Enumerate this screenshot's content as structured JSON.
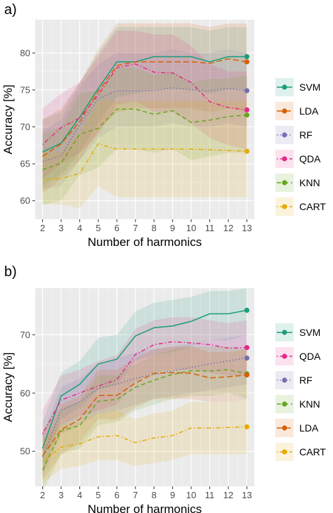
{
  "figure": {
    "panels": [
      {
        "id": "a",
        "label": "a)",
        "xlabel": "Number of harmonics",
        "ylabel": "Accuracy [%]"
      },
      {
        "id": "b",
        "label": "b)",
        "xlabel": "Number of harmonics",
        "ylabel": "Accuracy [%]"
      }
    ]
  },
  "chart_data": [
    {
      "type": "line",
      "panel": "a)",
      "title": "",
      "xlabel": "Number of harmonics",
      "ylabel": "Accuracy [%]",
      "x": [
        2,
        3,
        4,
        5,
        6,
        7,
        8,
        9,
        10,
        11,
        12,
        13
      ],
      "xticks": [
        2,
        3,
        4,
        5,
        6,
        7,
        8,
        9,
        10,
        11,
        12,
        13
      ],
      "xlim": [
        1.6,
        13.4
      ],
      "ylim": [
        57.5,
        84.5
      ],
      "yticks": [
        60,
        65,
        70,
        75,
        80
      ],
      "grid": true,
      "background": "#ebebeb",
      "legend_position": "right",
      "series": [
        {
          "name": "SVM",
          "color": "#1b9e77",
          "dash": "solid",
          "values": [
            66.6,
            67.8,
            71.3,
            75.2,
            78.8,
            78.8,
            79.5,
            79.5,
            79.5,
            78.8,
            79.5,
            79.5
          ],
          "lower": [
            62.0,
            63.5,
            66.5,
            70.5,
            74.0,
            74.5,
            75.0,
            75.0,
            75.0,
            74.5,
            75.0,
            75.0
          ],
          "upper": [
            71.0,
            72.0,
            76.0,
            80.0,
            83.5,
            83.5,
            83.5,
            83.5,
            83.5,
            83.0,
            83.5,
            83.5
          ]
        },
        {
          "name": "LDA",
          "color": "#d95f02",
          "dash": "longdash",
          "values": [
            66.0,
            67.7,
            70.7,
            74.8,
            78.3,
            78.8,
            78.8,
            78.8,
            78.8,
            78.6,
            79.2,
            78.8
          ],
          "lower": [
            61.0,
            63.0,
            65.5,
            69.5,
            72.0,
            72.5,
            72.5,
            72.5,
            72.5,
            72.0,
            72.5,
            72.0
          ],
          "upper": [
            71.0,
            72.5,
            76.0,
            80.5,
            84.0,
            84.0,
            84.0,
            84.0,
            84.0,
            83.5,
            84.0,
            84.0
          ]
        },
        {
          "name": "RF",
          "color": "#7570b3",
          "dash": "dotted",
          "values": [
            65.3,
            66.1,
            70.3,
            73.8,
            74.9,
            74.9,
            74.9,
            75.3,
            75.0,
            74.9,
            75.2,
            74.9
          ],
          "lower": [
            61.5,
            62.0,
            65.5,
            68.5,
            70.0,
            70.0,
            70.0,
            70.5,
            70.0,
            70.0,
            70.5,
            70.0
          ],
          "upper": [
            69.5,
            71.0,
            75.5,
            78.5,
            80.0,
            80.0,
            80.0,
            80.5,
            80.0,
            80.0,
            80.5,
            80.0
          ]
        },
        {
          "name": "QDA",
          "color": "#e7298a",
          "dash": "dotdash",
          "values": [
            67.6,
            69.9,
            71.2,
            74.3,
            78.0,
            78.5,
            77.4,
            77.3,
            76.0,
            73.4,
            72.6,
            72.3
          ],
          "lower": [
            63.0,
            65.0,
            66.5,
            69.0,
            73.0,
            73.5,
            72.0,
            72.0,
            70.5,
            68.5,
            67.5,
            67.0
          ],
          "upper": [
            72.5,
            74.5,
            76.0,
            79.5,
            83.0,
            83.0,
            82.5,
            82.5,
            81.0,
            78.5,
            77.5,
            77.5
          ]
        },
        {
          "name": "KNN",
          "color": "#66a61e",
          "dash": "dashed",
          "values": [
            64.2,
            65.1,
            69.0,
            69.8,
            72.4,
            72.4,
            71.7,
            72.2,
            70.6,
            70.9,
            71.4,
            71.6
          ],
          "lower": [
            59.5,
            60.0,
            63.5,
            64.5,
            67.0,
            67.0,
            66.5,
            67.0,
            65.5,
            66.0,
            66.5,
            66.5
          ],
          "upper": [
            69.0,
            70.0,
            74.5,
            75.0,
            78.0,
            78.0,
            77.0,
            77.5,
            76.0,
            76.5,
            76.5,
            77.0
          ]
        },
        {
          "name": "CART",
          "color": "#e6ab02",
          "dash": "dotdash",
          "values": [
            62.9,
            63.0,
            63.7,
            67.7,
            67.0,
            67.0,
            67.0,
            67.0,
            67.0,
            66.9,
            66.8,
            66.7
          ],
          "lower": [
            59.5,
            59.5,
            59.0,
            62.0,
            60.5,
            60.5,
            60.5,
            60.5,
            60.5,
            60.5,
            60.5,
            60.5
          ],
          "upper": [
            66.5,
            66.5,
            69.0,
            73.5,
            73.5,
            73.5,
            73.5,
            73.5,
            73.5,
            73.5,
            73.5,
            73.5
          ]
        }
      ]
    },
    {
      "type": "line",
      "panel": "b)",
      "title": "",
      "xlabel": "Number of harmonics",
      "ylabel": "Accuracy [%]",
      "x": [
        2,
        3,
        4,
        5,
        6,
        7,
        8,
        9,
        10,
        11,
        12,
        13
      ],
      "xticks": [
        2,
        3,
        4,
        5,
        6,
        7,
        8,
        9,
        10,
        11,
        12,
        13
      ],
      "xlim": [
        1.6,
        13.4
      ],
      "ylim": [
        44,
        78
      ],
      "yticks": [
        50,
        60,
        70
      ],
      "grid": true,
      "background": "#ebebeb",
      "legend_position": "right",
      "series": [
        {
          "name": "SVM",
          "color": "#1b9e77",
          "dash": "solid",
          "values": [
            50.5,
            59.5,
            61.5,
            65.0,
            65.8,
            69.8,
            71.2,
            71.5,
            72.3,
            73.6,
            73.6,
            74.2
          ],
          "lower": [
            46.0,
            55.5,
            57.5,
            60.5,
            61.5,
            65.5,
            66.5,
            67.0,
            68.0,
            69.0,
            69.0,
            70.0
          ],
          "upper": [
            55.0,
            63.5,
            65.5,
            69.5,
            70.0,
            74.0,
            75.5,
            76.0,
            76.5,
            77.5,
            77.5,
            78.0
          ]
        },
        {
          "name": "QDA",
          "color": "#e7298a",
          "dash": "dotdash",
          "values": [
            53.0,
            58.8,
            60.0,
            61.2,
            62.3,
            66.6,
            68.3,
            68.8,
            68.6,
            68.3,
            67.7,
            67.8
          ],
          "lower": [
            49.0,
            54.5,
            56.0,
            57.0,
            58.0,
            62.0,
            63.5,
            64.0,
            64.0,
            63.5,
            63.0,
            63.0
          ],
          "upper": [
            57.0,
            63.0,
            64.0,
            65.5,
            66.5,
            71.0,
            72.5,
            73.0,
            73.0,
            72.5,
            72.0,
            72.5
          ]
        },
        {
          "name": "RF",
          "color": "#7570b3",
          "dash": "dotted",
          "values": [
            49.0,
            57.0,
            58.5,
            60.8,
            61.5,
            62.5,
            63.2,
            63.8,
            64.4,
            65.0,
            65.5,
            66.0
          ],
          "lower": [
            45.5,
            53.0,
            54.5,
            56.5,
            57.0,
            58.0,
            59.0,
            59.5,
            60.0,
            60.5,
            61.0,
            61.5
          ],
          "upper": [
            53.0,
            61.0,
            62.5,
            65.0,
            66.0,
            67.0,
            67.5,
            68.0,
            68.5,
            69.0,
            69.5,
            70.0
          ]
        },
        {
          "name": "KNN",
          "color": "#66a61e",
          "dash": "dashed",
          "values": [
            46.8,
            53.5,
            54.4,
            58.6,
            58.9,
            61.0,
            62.2,
            63.2,
            63.8,
            63.8,
            64.0,
            63.3
          ],
          "lower": [
            43.0,
            49.5,
            50.5,
            54.5,
            55.0,
            57.0,
            58.0,
            59.0,
            59.5,
            59.5,
            60.0,
            59.0
          ],
          "upper": [
            50.5,
            57.5,
            58.5,
            63.0,
            63.0,
            65.0,
            66.5,
            67.5,
            68.0,
            68.0,
            68.0,
            67.5
          ]
        },
        {
          "name": "LDA",
          "color": "#d95f02",
          "dash": "longdash",
          "values": [
            49.2,
            53.7,
            55.5,
            59.6,
            59.6,
            61.7,
            63.4,
            63.5,
            63.4,
            62.6,
            62.8,
            63.1
          ],
          "lower": [
            45.0,
            49.5,
            51.5,
            55.5,
            55.5,
            57.5,
            59.0,
            59.0,
            59.0,
            58.5,
            58.5,
            59.0
          ],
          "upper": [
            53.5,
            58.0,
            59.5,
            64.0,
            64.0,
            66.0,
            67.5,
            68.0,
            68.0,
            67.0,
            67.0,
            67.5
          ]
        },
        {
          "name": "CART",
          "color": "#e6ab02",
          "dash": "dotdash",
          "values": [
            48.3,
            50.7,
            51.3,
            52.5,
            52.7,
            51.5,
            52.3,
            52.7,
            54.0,
            54.0,
            54.1,
            54.2
          ],
          "lower": [
            44.5,
            47.0,
            47.5,
            48.5,
            48.5,
            47.5,
            48.0,
            48.5,
            49.5,
            49.5,
            49.5,
            49.5
          ],
          "upper": [
            52.0,
            54.5,
            55.0,
            56.5,
            57.0,
            55.5,
            56.5,
            57.0,
            58.5,
            58.5,
            58.5,
            59.0
          ]
        }
      ]
    }
  ]
}
